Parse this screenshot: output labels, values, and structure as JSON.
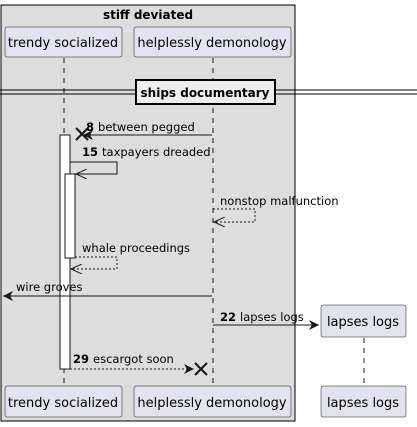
{
  "group": {
    "title": "stiff deviated"
  },
  "participants": [
    {
      "id": "trendy",
      "label": "trendy socialized"
    },
    {
      "id": "helpless",
      "label": "helplessly demonology"
    },
    {
      "id": "lapses",
      "label": "lapses logs"
    }
  ],
  "divider": {
    "label": "ships documentary"
  },
  "messages": [
    {
      "num": "8",
      "text": "between pegged"
    },
    {
      "num": "15",
      "text": "taxpayers dreaded"
    },
    {
      "num": "",
      "text": "nonstop malfunction"
    },
    {
      "num": "",
      "text": "whale proceedings"
    },
    {
      "num": "",
      "text": "wire groves"
    },
    {
      "num": "22",
      "text": "lapses logs"
    },
    {
      "num": "29",
      "text": "escargot soon"
    }
  ],
  "colors": {
    "participant_fill": "#e2e2f0",
    "participant_border": "#181818",
    "group_fill": "#dddddd",
    "lifeline": "#181818"
  }
}
